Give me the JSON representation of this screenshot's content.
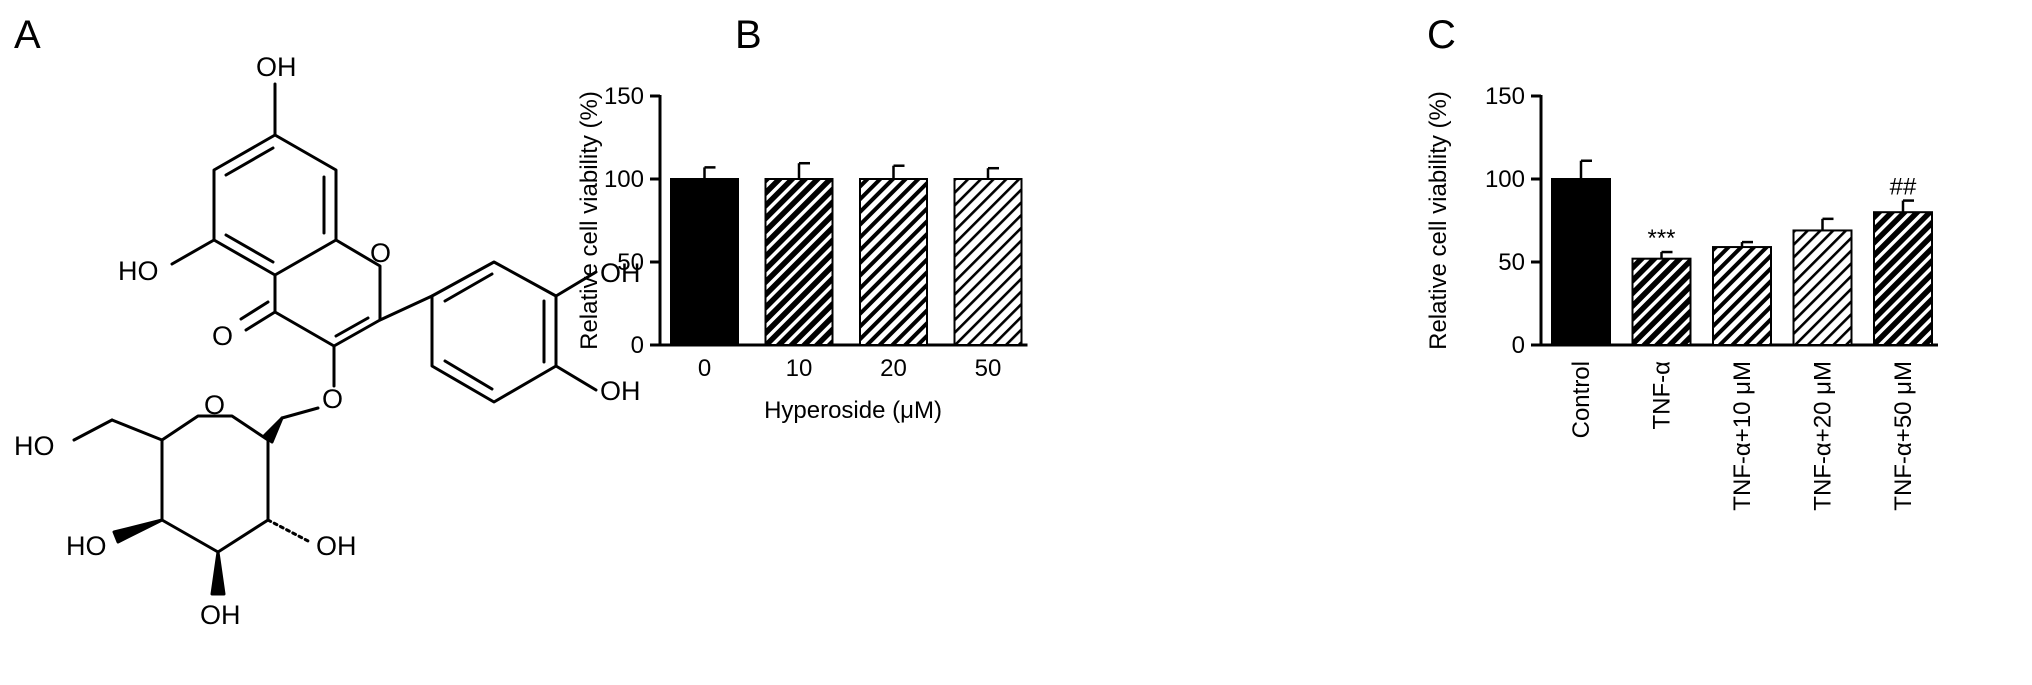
{
  "panels": {
    "a": {
      "letter": "A"
    },
    "b": {
      "letter": "B"
    },
    "c": {
      "letter": "C"
    }
  },
  "structure_labels": {
    "oh_top": "OH",
    "ho_left": "HO",
    "o_ring": "O",
    "o_carbonyl": "O",
    "oh_right_top": "OH",
    "oh_right_bottom": "OH",
    "o_link": "O",
    "o_sugar": "O",
    "ho_sugar": "HO",
    "ho_sugar_low": "HO",
    "oh_sugar_right": "OH",
    "oh_sugar_bottom": "OH"
  },
  "chart_data": [
    {
      "type": "bar",
      "panel": "B",
      "categories": [
        "0",
        "10",
        "20",
        "50"
      ],
      "values": [
        100,
        100,
        100,
        100
      ],
      "errors": [
        7,
        9.5,
        8,
        6.5
      ],
      "patterns": [
        "solid",
        "hatch-dark",
        "hatch-medium",
        "hatch-light"
      ],
      "xlabel": "Hyperoside (μM)",
      "ylabel": "Relative cell viability (%)",
      "ylim": [
        0,
        150
      ],
      "yticks": [
        "0",
        "50",
        "100",
        "150"
      ],
      "annotations": [
        "",
        "",
        "",
        ""
      ],
      "grid": false
    },
    {
      "type": "bar",
      "panel": "C",
      "categories": [
        "Control",
        "TNF-α",
        "TNF-α+10 μM",
        "TNF-α+20 μM",
        "TNF-α+50 μM"
      ],
      "values": [
        100,
        52,
        59,
        69,
        80
      ],
      "errors": [
        11,
        4,
        3,
        7,
        7
      ],
      "patterns": [
        "solid",
        "hatch-dark",
        "hatch-medium",
        "hatch-light",
        "hatch-dark"
      ],
      "xlabel": "",
      "ylabel": "Relative cell viability (%)",
      "ylim": [
        0,
        150
      ],
      "yticks": [
        "0",
        "50",
        "100",
        "150"
      ],
      "annotations": [
        "",
        "***",
        "",
        "",
        "##"
      ],
      "grid": false
    }
  ],
  "colors": {
    "ink": "#000000",
    "paper": "#ffffff"
  }
}
